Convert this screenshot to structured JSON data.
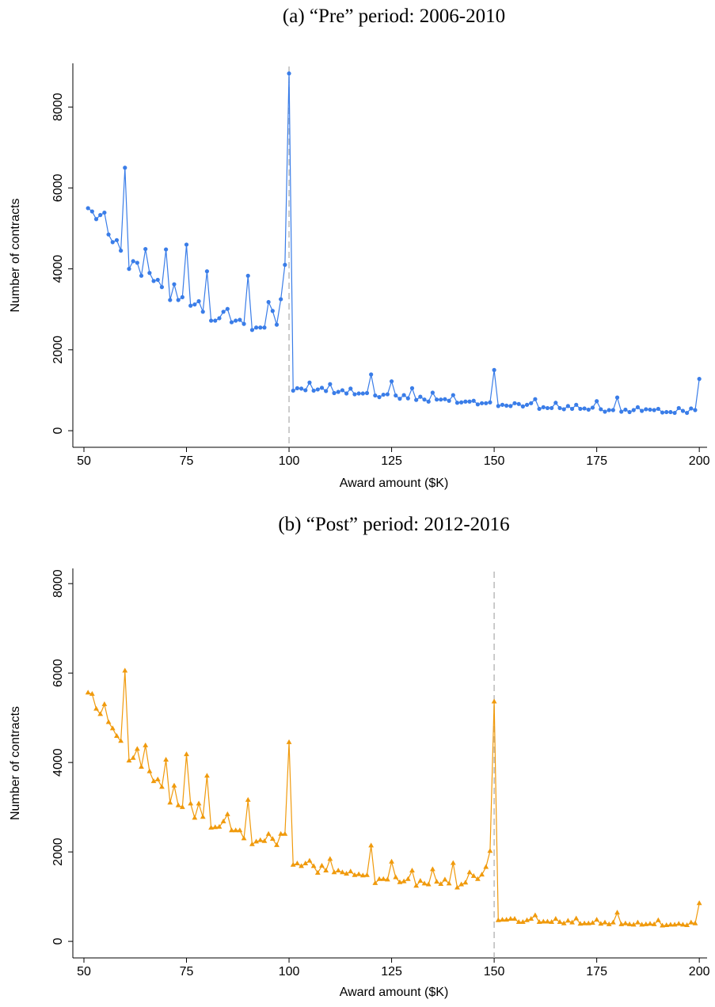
{
  "chart_data": [
    {
      "type": "line",
      "title": "(a) “Pre” period: 2006-2010",
      "xlabel": "Award amount ($K)",
      "ylabel": "Number of contracts",
      "x": [
        51,
        52,
        53,
        54,
        55,
        56,
        57,
        58,
        59,
        60,
        61,
        62,
        63,
        64,
        65,
        66,
        67,
        68,
        69,
        70,
        71,
        72,
        73,
        74,
        75,
        76,
        77,
        78,
        79,
        80,
        81,
        82,
        83,
        84,
        85,
        86,
        87,
        88,
        89,
        90,
        91,
        92,
        93,
        94,
        95,
        96,
        97,
        98,
        99,
        100,
        101,
        102,
        103,
        104,
        105,
        106,
        107,
        108,
        109,
        110,
        111,
        112,
        113,
        114,
        115,
        116,
        117,
        118,
        119,
        120,
        121,
        122,
        123,
        124,
        125,
        126,
        127,
        128,
        129,
        130,
        131,
        132,
        133,
        134,
        135,
        136,
        137,
        138,
        139,
        140,
        141,
        142,
        143,
        144,
        145,
        146,
        147,
        148,
        149,
        150,
        151,
        152,
        153,
        154,
        155,
        156,
        157,
        158,
        159,
        160,
        161,
        162,
        163,
        164,
        165,
        166,
        167,
        168,
        169,
        170,
        171,
        172,
        173,
        174,
        175,
        176,
        177,
        178,
        179,
        180,
        181,
        182,
        183,
        184,
        185,
        186,
        187,
        188,
        189,
        190,
        191,
        192,
        193,
        194,
        195,
        196,
        197,
        198,
        199,
        200
      ],
      "series": [
        {
          "color": "#3a7de8",
          "marker": "circle",
          "values": [
            5500,
            5420,
            5230,
            5330,
            5390,
            4850,
            4660,
            4710,
            4450,
            6500,
            4000,
            4190,
            4150,
            3830,
            4490,
            3900,
            3700,
            3730,
            3550,
            4480,
            3230,
            3620,
            3230,
            3300,
            4600,
            3090,
            3120,
            3200,
            2940,
            3940,
            2720,
            2720,
            2780,
            2940,
            3010,
            2680,
            2720,
            2740,
            2640,
            3830,
            2490,
            2550,
            2550,
            2550,
            3180,
            2960,
            2620,
            3250,
            4100,
            8830,
            990,
            1050,
            1040,
            1000,
            1190,
            990,
            1020,
            1060,
            980,
            1150,
            930,
            960,
            1000,
            920,
            1040,
            900,
            920,
            920,
            930,
            1390,
            870,
            830,
            890,
            900,
            1220,
            870,
            790,
            880,
            800,
            1050,
            760,
            840,
            770,
            720,
            940,
            770,
            770,
            780,
            740,
            880,
            690,
            700,
            720,
            720,
            740,
            650,
            680,
            680,
            700,
            1500,
            610,
            640,
            620,
            610,
            680,
            660,
            600,
            640,
            680,
            780,
            540,
            580,
            560,
            560,
            690,
            560,
            530,
            610,
            540,
            640,
            540,
            550,
            520,
            570,
            730,
            530,
            470,
            510,
            510,
            820,
            470,
            520,
            460,
            510,
            580,
            490,
            530,
            520,
            510,
            540,
            450,
            460,
            460,
            440,
            560,
            490,
            440,
            550,
            510,
            1280
          ]
        }
      ],
      "vline": 100,
      "xlim": [
        47.3,
        201.9
      ],
      "ylim": [
        -410,
        9080
      ],
      "xticks": [
        50,
        75,
        100,
        125,
        150,
        175,
        200
      ],
      "yticks": [
        0,
        2000,
        4000,
        6000,
        8000
      ]
    },
    {
      "type": "line",
      "title": "(b) “Post” period: 2012-2016",
      "xlabel": "Award amount ($K)",
      "ylabel": "Number of contracts",
      "x": [
        51,
        52,
        53,
        54,
        55,
        56,
        57,
        58,
        59,
        60,
        61,
        62,
        63,
        64,
        65,
        66,
        67,
        68,
        69,
        70,
        71,
        72,
        73,
        74,
        75,
        76,
        77,
        78,
        79,
        80,
        81,
        82,
        83,
        84,
        85,
        86,
        87,
        88,
        89,
        90,
        91,
        92,
        93,
        94,
        95,
        96,
        97,
        98,
        99,
        100,
        101,
        102,
        103,
        104,
        105,
        106,
        107,
        108,
        109,
        110,
        111,
        112,
        113,
        114,
        115,
        116,
        117,
        118,
        119,
        120,
        121,
        122,
        123,
        124,
        125,
        126,
        127,
        128,
        129,
        130,
        131,
        132,
        133,
        134,
        135,
        136,
        137,
        138,
        139,
        140,
        141,
        142,
        143,
        144,
        145,
        146,
        147,
        148,
        149,
        150,
        151,
        152,
        153,
        154,
        155,
        156,
        157,
        158,
        159,
        160,
        161,
        162,
        163,
        164,
        165,
        166,
        167,
        168,
        169,
        170,
        171,
        172,
        173,
        174,
        175,
        176,
        177,
        178,
        179,
        180,
        181,
        182,
        183,
        184,
        185,
        186,
        187,
        188,
        189,
        190,
        191,
        192,
        193,
        194,
        195,
        196,
        197,
        198,
        199,
        200
      ],
      "series": [
        {
          "color": "#f09a0c",
          "marker": "triangle",
          "values": [
            5560,
            5530,
            5200,
            5080,
            5300,
            4900,
            4760,
            4590,
            4480,
            6050,
            4040,
            4100,
            4300,
            3900,
            4380,
            3800,
            3580,
            3620,
            3450,
            4060,
            3100,
            3480,
            3040,
            3000,
            4180,
            3080,
            2760,
            3080,
            2780,
            3700,
            2540,
            2550,
            2560,
            2680,
            2840,
            2480,
            2480,
            2480,
            2300,
            3160,
            2170,
            2230,
            2260,
            2240,
            2400,
            2290,
            2150,
            2400,
            2400,
            4450,
            1710,
            1740,
            1680,
            1740,
            1800,
            1680,
            1530,
            1690,
            1580,
            1840,
            1540,
            1580,
            1540,
            1510,
            1560,
            1480,
            1500,
            1470,
            1480,
            2140,
            1300,
            1390,
            1390,
            1380,
            1780,
            1430,
            1320,
            1340,
            1390,
            1580,
            1240,
            1350,
            1290,
            1270,
            1610,
            1330,
            1280,
            1380,
            1290,
            1750,
            1200,
            1270,
            1310,
            1540,
            1460,
            1390,
            1490,
            1660,
            2020,
            5360,
            470,
            480,
            480,
            500,
            500,
            430,
            430,
            470,
            500,
            580,
            430,
            440,
            440,
            430,
            500,
            430,
            400,
            460,
            420,
            510,
            390,
            400,
            400,
            410,
            480,
            390,
            420,
            380,
            420,
            640,
            380,
            400,
            380,
            370,
            420,
            370,
            380,
            390,
            380,
            470,
            350,
            360,
            370,
            370,
            390,
            370,
            360,
            420,
            400,
            850
          ]
        }
      ],
      "vline": 150,
      "xlim": [
        47.3,
        201.9
      ],
      "ylim": [
        -370,
        8340
      ],
      "xticks": [
        50,
        75,
        100,
        125,
        150,
        175,
        200
      ],
      "yticks": [
        0,
        2000,
        4000,
        6000,
        8000
      ]
    }
  ]
}
